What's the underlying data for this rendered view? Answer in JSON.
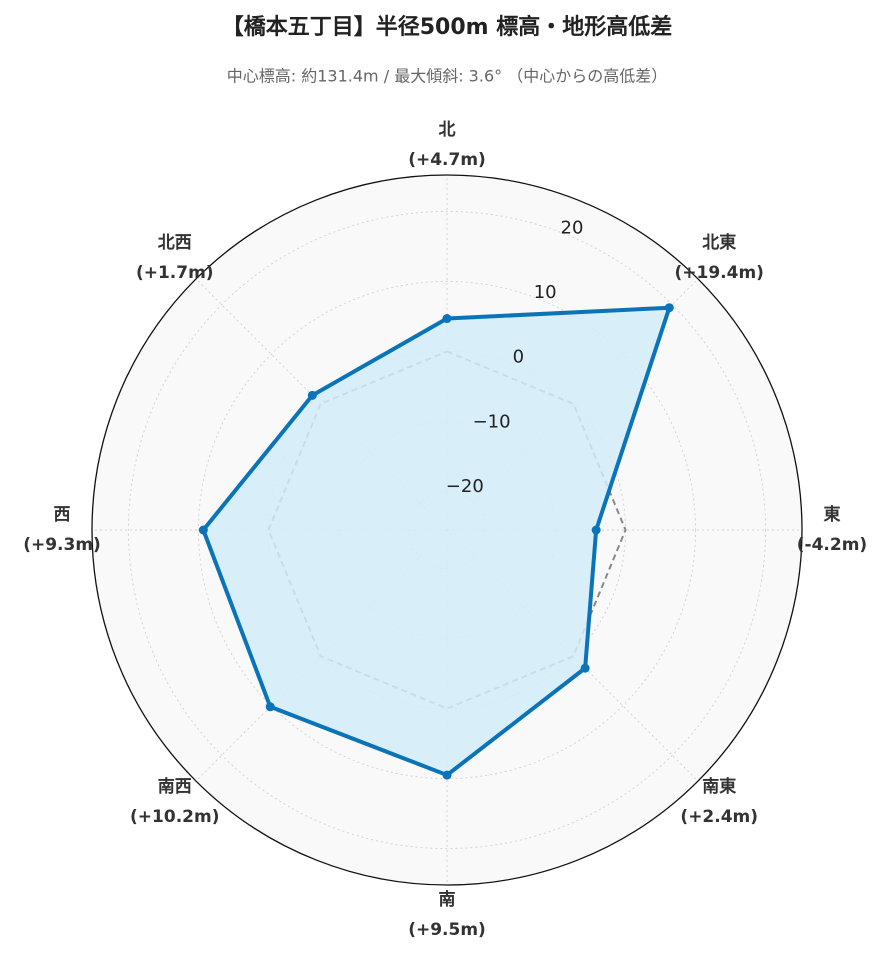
{
  "chart_data": {
    "type": "radar",
    "title": "【橋本五丁目】半径500m 標高・地形高低差",
    "subtitle": "中心標高: 約131.4m / 最大傾斜: 3.6° （中心からの高低差）",
    "categories": [
      "北",
      "北東",
      "東",
      "南東",
      "南",
      "南西",
      "西",
      "北西"
    ],
    "series": [
      {
        "color": "#0b74b8",
        "fill": "#d2ecf9",
        "values": [
          4.7,
          19.4,
          -4.2,
          2.4,
          9.5,
          10.2,
          9.3,
          1.7
        ],
        "value_labels": [
          "(+4.7m)",
          "(+19.4m)",
          "(-4.2m)",
          "(+2.4m)",
          "(+9.5m)",
          "(+10.2m)",
          "(+9.3m)",
          "(+1.7m)"
        ]
      }
    ],
    "baseline": 0,
    "ylim": [
      -25.5,
      25.2
    ],
    "yticks": [
      {
        "value": -20,
        "label": "−20"
      },
      {
        "value": -10,
        "label": "−10"
      },
      0,
      10,
      20
    ],
    "grid": true
  }
}
